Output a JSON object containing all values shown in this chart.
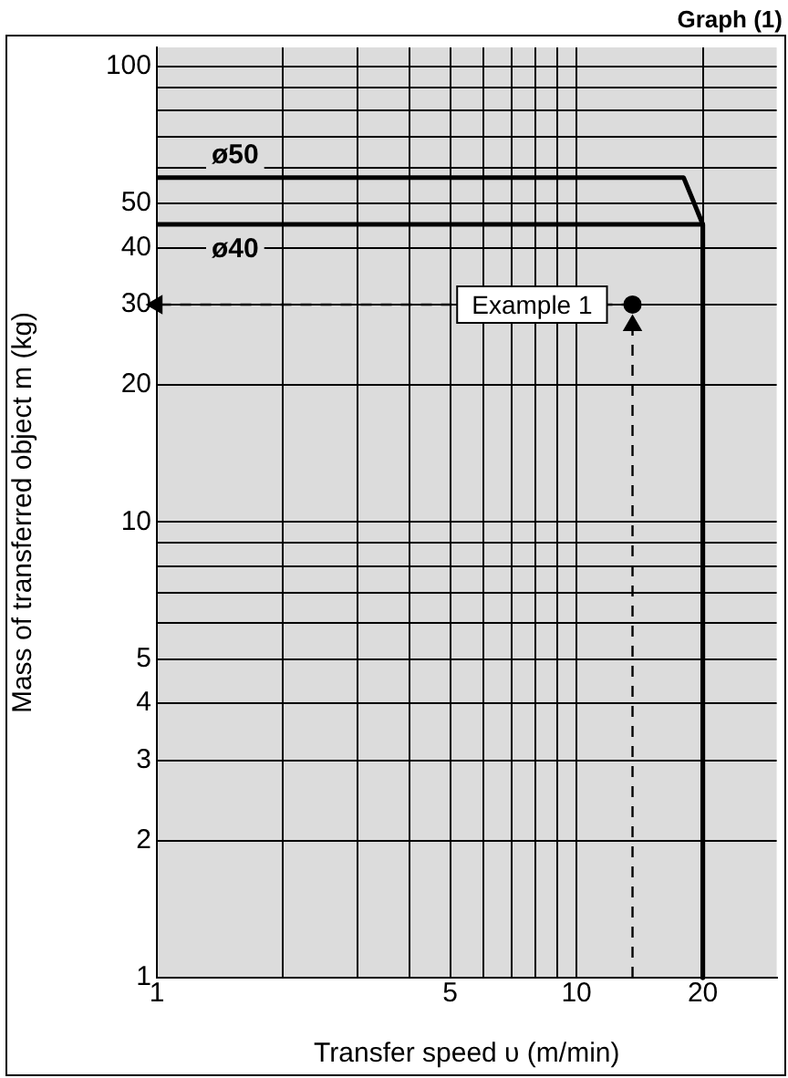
{
  "chart_data": {
    "type": "line",
    "title": "Graph (1)",
    "xlabel": "Transfer speed υ (m/min)",
    "ylabel": "Mass of transferred object m (kg)",
    "log": "xy",
    "grid": true,
    "legend": false,
    "xlim": [
      1,
      30
    ],
    "ylim": [
      1,
      110
    ],
    "xticks": [
      1,
      {
        "value": 2,
        "label": null
      },
      {
        "value": 3,
        "label": null
      },
      {
        "value": 4,
        "label": null
      },
      5,
      {
        "value": 6,
        "label": null
      },
      {
        "value": 7,
        "label": null
      },
      {
        "value": 8,
        "label": null
      },
      {
        "value": 9,
        "label": null
      },
      10,
      20
    ],
    "yticks": [
      1,
      2,
      3,
      4,
      5,
      {
        "value": 6,
        "label": null
      },
      {
        "value": 7,
        "label": null
      },
      {
        "value": 8,
        "label": null
      },
      {
        "value": 9,
        "label": null
      },
      10,
      20,
      30,
      40,
      50,
      {
        "value": 60,
        "label": null
      },
      {
        "value": 70,
        "label": null
      },
      {
        "value": 80,
        "label": null
      },
      {
        "value": 90,
        "label": null
      },
      100
    ],
    "annotations": [
      {
        "text": "Example 1",
        "x": 13.6,
        "y": 30
      }
    ],
    "series": [
      {
        "name": "ø50",
        "type": "line",
        "color": "#000000",
        "marker": "none",
        "line_style": "solid",
        "x": [
          1,
          18,
          20,
          20
        ],
        "values": [
          57,
          57,
          45,
          1
        ]
      },
      {
        "name": "ø40",
        "type": "line",
        "color": "#000000",
        "marker": "none",
        "line_style": "solid",
        "x": [
          1,
          20,
          20
        ],
        "values": [
          45,
          45,
          1
        ]
      },
      {
        "type": "line",
        "color": "#000000",
        "marker": "triangle",
        "line_style": "dashed",
        "x": [
          13.6,
          1
        ],
        "values": [
          30,
          30
        ]
      },
      {
        "type": "line",
        "color": "#000000",
        "marker": "triangle",
        "line_style": "dashed",
        "x": [
          13.6,
          13.6
        ],
        "values": [
          1,
          27
        ]
      },
      {
        "type": "scatter",
        "color": "#000000",
        "marker": "circle",
        "x": [
          13.6
        ],
        "values": [
          30
        ]
      }
    ]
  }
}
